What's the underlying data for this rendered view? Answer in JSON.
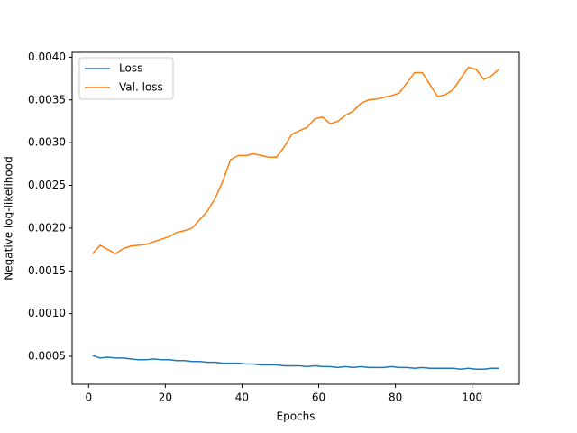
{
  "chart_data": {
    "type": "line",
    "xlabel": "Epochs",
    "ylabel": "Negative log-likelihood",
    "x": [
      1,
      3,
      5,
      7,
      9,
      11,
      13,
      15,
      17,
      19,
      21,
      23,
      25,
      27,
      29,
      31,
      33,
      35,
      37,
      39,
      41,
      43,
      45,
      47,
      49,
      51,
      53,
      55,
      57,
      59,
      61,
      63,
      65,
      67,
      69,
      71,
      73,
      75,
      77,
      79,
      81,
      83,
      85,
      87,
      89,
      91,
      93,
      95,
      97,
      99,
      101,
      103,
      105,
      107
    ],
    "series": [
      {
        "name": "Loss",
        "color": "#1f77b4",
        "values": [
          0.00051,
          0.00048,
          0.00049,
          0.00048,
          0.00048,
          0.00047,
          0.00046,
          0.00046,
          0.00047,
          0.00046,
          0.00046,
          0.00045,
          0.00045,
          0.00044,
          0.00044,
          0.00043,
          0.00043,
          0.00042,
          0.00042,
          0.00042,
          0.00041,
          0.00041,
          0.0004,
          0.0004,
          0.0004,
          0.00039,
          0.00039,
          0.00039,
          0.00038,
          0.00039,
          0.00038,
          0.00038,
          0.00037,
          0.00038,
          0.00037,
          0.00038,
          0.00037,
          0.00037,
          0.00037,
          0.00038,
          0.00037,
          0.00037,
          0.00036,
          0.00037,
          0.00036,
          0.00036,
          0.00036,
          0.00036,
          0.00035,
          0.00036,
          0.00035,
          0.00035,
          0.00036,
          0.00036
        ]
      },
      {
        "name": "Val. loss",
        "color": "#ff7f0e",
        "values": [
          0.0017,
          0.0018,
          0.00175,
          0.0017,
          0.00176,
          0.00179,
          0.0018,
          0.00181,
          0.00184,
          0.00187,
          0.0019,
          0.00195,
          0.00197,
          0.002,
          0.0021,
          0.0022,
          0.00235,
          0.00255,
          0.0028,
          0.00285,
          0.00285,
          0.00287,
          0.00285,
          0.00283,
          0.00283,
          0.00295,
          0.0031,
          0.00314,
          0.00318,
          0.00328,
          0.0033,
          0.00322,
          0.00325,
          0.00332,
          0.00337,
          0.00346,
          0.0035,
          0.00351,
          0.00353,
          0.00355,
          0.00358,
          0.0037,
          0.00382,
          0.00382,
          0.00368,
          0.00354,
          0.00356,
          0.00362,
          0.00375,
          0.00388,
          0.00386,
          0.00374,
          0.00378,
          0.00386
        ]
      }
    ],
    "xlim": [
      -4.3,
      112.3
    ],
    "xticks": [
      0,
      20,
      40,
      60,
      80,
      100
    ],
    "ylim": [
      0.000173,
      0.004057
    ],
    "yticks": [
      {
        "value": 0.0005,
        "label": "0.0005"
      },
      {
        "value": 0.001,
        "label": "0.0010"
      },
      {
        "value": 0.0015,
        "label": "0.0015"
      },
      {
        "value": 0.002,
        "label": "0.0020"
      },
      {
        "value": 0.0025,
        "label": "0.0025"
      },
      {
        "value": 0.003,
        "label": "0.0030"
      },
      {
        "value": 0.0035,
        "label": "0.0035"
      },
      {
        "value": 0.004,
        "label": "0.0040"
      }
    ],
    "legend": "upper left",
    "grid": false
  }
}
